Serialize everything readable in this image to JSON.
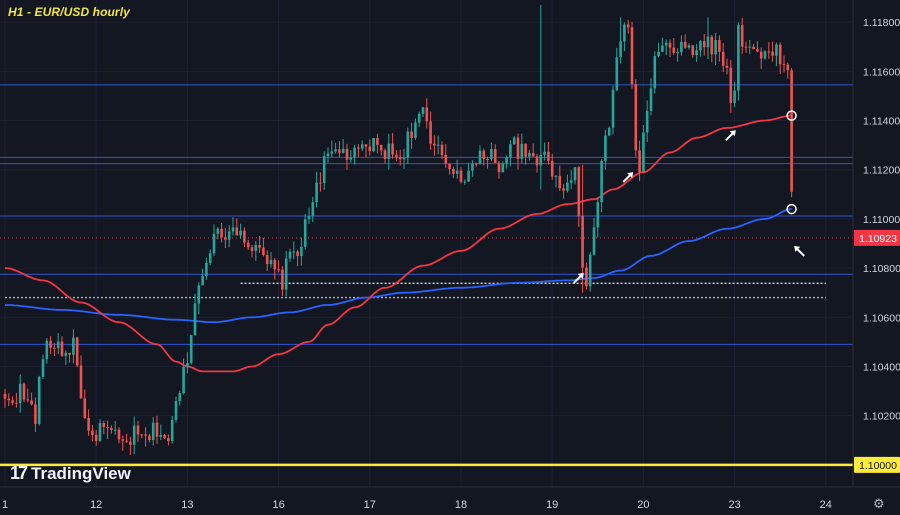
{
  "chart_data": {
    "type": "candlestick",
    "title": "H1 - EUR/USD hourly",
    "ylim": [
      1.0991,
      1.1189
    ],
    "y_ticks": [
      "1.11800",
      "1.11600",
      "1.11400",
      "1.11200",
      "1.11000",
      "1.10800",
      "1.10600",
      "1.10400",
      "1.10200"
    ],
    "y_tick_values": [
      1.118,
      1.116,
      1.114,
      1.112,
      1.11,
      1.108,
      1.106,
      1.104,
      1.102
    ],
    "x_ticks": [
      "1",
      "12",
      "13",
      "16",
      "17",
      "18",
      "19",
      "20",
      "23",
      "24"
    ],
    "x_tick_index": [
      0,
      24,
      48,
      72,
      96,
      120,
      144,
      168,
      192,
      216
    ],
    "n_bars": 208,
    "colors": {
      "up": "#26a69a",
      "down": "#ef5350",
      "ma_red": "#f23645",
      "ma_blue": "#2962ff"
    },
    "current_price": {
      "label": "1.10923",
      "value": 1.10923,
      "color": "#f23645"
    },
    "support_level": {
      "label": "1.10000",
      "value": 1.1,
      "color": "#ffeb3b"
    },
    "horizontal_levels": [
      1.11545,
      1.1125,
      1.11225,
      1.11012,
      1.10775,
      1.1049
    ],
    "dotted_levels": [
      {
        "value": 1.10738,
        "from": 62,
        "to": 216,
        "color": "#d1d4dc"
      },
      {
        "value": 1.1068,
        "from": 0,
        "to": 216,
        "color": "#b2b5be"
      }
    ],
    "waypoints": [
      [
        0,
        1.1025
      ],
      [
        4,
        1.103
      ],
      [
        8,
        1.102
      ],
      [
        10,
        1.1045
      ],
      [
        13,
        1.105
      ],
      [
        16,
        1.1045
      ],
      [
        18,
        1.105
      ],
      [
        20,
        1.103
      ],
      [
        22,
        1.101
      ],
      [
        25,
        1.1015
      ],
      [
        28,
        1.1012
      ],
      [
        31,
        1.1008
      ],
      [
        34,
        1.1012
      ],
      [
        37,
        1.101
      ],
      [
        40,
        1.1015
      ],
      [
        43,
        1.101
      ],
      [
        46,
        1.103
      ],
      [
        48,
        1.1045
      ],
      [
        50,
        1.1065
      ],
      [
        52,
        1.108
      ],
      [
        54,
        1.109
      ],
      [
        58,
        1.1095
      ],
      [
        62,
        1.1097
      ],
      [
        64,
        1.109
      ],
      [
        67,
        1.1085
      ],
      [
        70,
        1.108
      ],
      [
        73,
        1.1075
      ],
      [
        75,
        1.1085
      ],
      [
        78,
        1.109
      ],
      [
        80,
        1.1102
      ],
      [
        82,
        1.1115
      ],
      [
        85,
        1.1125
      ],
      [
        88,
        1.1128
      ],
      [
        92,
        1.1125
      ],
      [
        96,
        1.113
      ],
      [
        100,
        1.1128
      ],
      [
        104,
        1.1125
      ],
      [
        108,
        1.114
      ],
      [
        110,
        1.1143
      ],
      [
        112,
        1.113
      ],
      [
        115,
        1.1125
      ],
      [
        118,
        1.112
      ],
      [
        121,
        1.1118
      ],
      [
        124,
        1.1122
      ],
      [
        127,
        1.1128
      ],
      [
        130,
        1.1122
      ],
      [
        134,
        1.113
      ],
      [
        137,
        1.1125
      ],
      [
        140,
        1.1122
      ],
      [
        142,
        1.113
      ],
      [
        144,
        1.112
      ],
      [
        146,
        1.111
      ],
      [
        148,
        1.1118
      ],
      [
        150,
        1.112
      ],
      [
        152,
        1.108
      ],
      [
        153,
        1.1075
      ],
      [
        155,
        1.11
      ],
      [
        157,
        1.112
      ],
      [
        159,
        1.114
      ],
      [
        161,
        1.1165
      ],
      [
        163,
        1.118
      ],
      [
        164,
        1.1175
      ],
      [
        166,
        1.113
      ],
      [
        167,
        1.112
      ],
      [
        169,
        1.1145
      ],
      [
        171,
        1.1165
      ],
      [
        174,
        1.117
      ],
      [
        178,
        1.1168
      ],
      [
        182,
        1.117
      ],
      [
        185,
        1.1172
      ],
      [
        188,
        1.1168
      ],
      [
        190,
        1.116
      ],
      [
        191,
        1.1145
      ],
      [
        192,
        1.115
      ],
      [
        193,
        1.1175
      ],
      [
        196,
        1.1168
      ],
      [
        200,
        1.1165
      ],
      [
        203,
        1.1167
      ],
      [
        205,
        1.1165
      ],
      [
        206,
        1.1158
      ],
      [
        207,
        1.111
      ],
      [
        208,
        1.1092
      ]
    ],
    "ma_red": [
      [
        0,
        1.108
      ],
      [
        10,
        1.1075
      ],
      [
        20,
        1.1066
      ],
      [
        30,
        1.1058
      ],
      [
        40,
        1.1049
      ],
      [
        45,
        1.1042
      ],
      [
        48,
        1.104
      ],
      [
        52,
        1.1038
      ],
      [
        60,
        1.1038
      ],
      [
        65,
        1.104
      ],
      [
        72,
        1.1045
      ],
      [
        80,
        1.105
      ],
      [
        85,
        1.1057
      ],
      [
        92,
        1.1064
      ],
      [
        100,
        1.1072
      ],
      [
        110,
        1.1081
      ],
      [
        120,
        1.1087
      ],
      [
        130,
        1.1096
      ],
      [
        140,
        1.1102
      ],
      [
        148,
        1.1106
      ],
      [
        155,
        1.1108
      ],
      [
        160,
        1.1112
      ],
      [
        168,
        1.1119
      ],
      [
        175,
        1.1127
      ],
      [
        182,
        1.1133
      ],
      [
        190,
        1.1137
      ],
      [
        200,
        1.114
      ],
      [
        207,
        1.1142
      ]
    ],
    "ma_blue": [
      [
        0,
        1.1065
      ],
      [
        15,
        1.1063
      ],
      [
        30,
        1.1061
      ],
      [
        45,
        1.1059
      ],
      [
        55,
        1.1058
      ],
      [
        65,
        1.106
      ],
      [
        75,
        1.1062
      ],
      [
        85,
        1.1065
      ],
      [
        95,
        1.1068
      ],
      [
        105,
        1.107
      ],
      [
        120,
        1.1072
      ],
      [
        135,
        1.1074
      ],
      [
        148,
        1.1075
      ],
      [
        155,
        1.1076
      ],
      [
        162,
        1.1079
      ],
      [
        170,
        1.1085
      ],
      [
        180,
        1.1091
      ],
      [
        190,
        1.1096
      ],
      [
        200,
        1.11
      ],
      [
        207,
        1.1104
      ]
    ],
    "spikes": [
      {
        "i": 141,
        "high": 1.1187,
        "low": 1.1112
      },
      {
        "i": 152,
        "high": 1.1122,
        "low": 1.107
      },
      {
        "i": 162,
        "high": 1.1182,
        "low": 1.1168
      },
      {
        "i": 185,
        "high": 1.1182,
        "low": 1.1165
      }
    ],
    "circles": [
      {
        "i": 207,
        "value": 1.1142
      },
      {
        "i": 207,
        "value": 1.1104
      }
    ],
    "arrows": [
      {
        "i": 151,
        "value": 1.1076,
        "dir": "up"
      },
      {
        "i": 164,
        "value": 1.1117,
        "dir": "up"
      },
      {
        "i": 191,
        "value": 1.1134,
        "dir": "up"
      },
      {
        "i": 209,
        "value": 1.1087,
        "dir": "down"
      }
    ]
  },
  "brand": {
    "name": "TradingView",
    "mark": "17"
  }
}
